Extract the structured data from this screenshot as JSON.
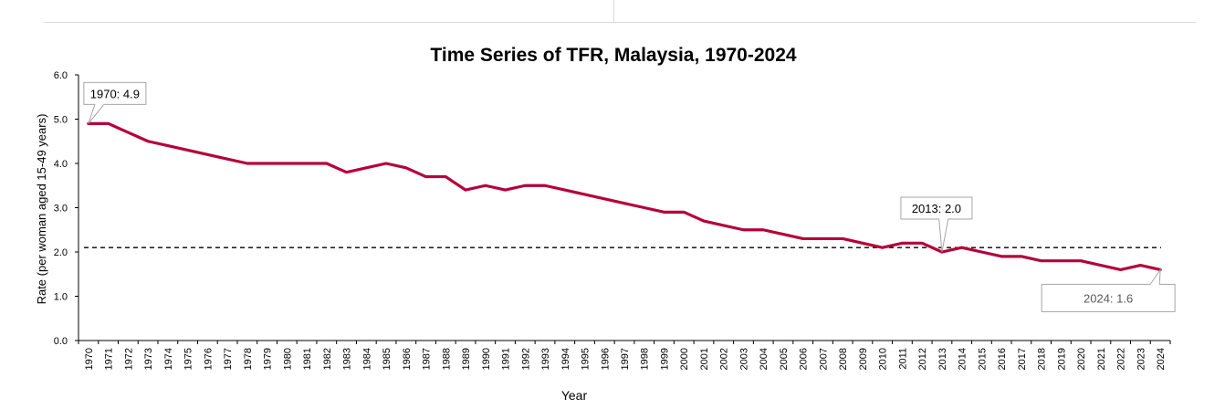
{
  "chart_data": {
    "type": "line",
    "title": "Time Series of TFR, Malaysia, 1970-2024",
    "xlabel": "Year",
    "ylabel": "Rate (per woman aged 15-49 years)",
    "ylim": [
      0,
      6
    ],
    "yticks": [
      "0.0",
      "1.0",
      "2.0",
      "3.0",
      "4.0",
      "5.0",
      "6.0"
    ],
    "x": [
      "1970",
      "1971",
      "1972",
      "1973",
      "1974",
      "1975",
      "1976",
      "1977",
      "1978",
      "1979",
      "1980",
      "1981",
      "1982",
      "1983",
      "1984",
      "1985",
      "1986",
      "1987",
      "1988",
      "1989",
      "1990",
      "1991",
      "1992",
      "1993",
      "1994",
      "1995",
      "1996",
      "1997",
      "1998",
      "1999",
      "2000",
      "2001",
      "2002",
      "2003",
      "2004",
      "2005",
      "2006",
      "2007",
      "2008",
      "2009",
      "2010",
      "2011",
      "2012",
      "2013",
      "2014",
      "2015",
      "2016",
      "2017",
      "2018",
      "2019",
      "2020",
      "2021",
      "2022",
      "2023",
      "2024"
    ],
    "series": [
      {
        "values": [
          4.9,
          4.9,
          4.7,
          4.5,
          4.4,
          4.3,
          4.2,
          4.1,
          4.0,
          4.0,
          4.0,
          4.0,
          4.0,
          3.8,
          3.9,
          4.0,
          3.9,
          3.7,
          3.7,
          3.4,
          3.5,
          3.4,
          3.5,
          3.5,
          3.4,
          3.3,
          3.2,
          3.1,
          3.0,
          2.9,
          2.9,
          2.7,
          2.6,
          2.5,
          2.5,
          2.4,
          2.3,
          2.3,
          2.3,
          2.2,
          2.1,
          2.2,
          2.2,
          2.0,
          2.1,
          2.0,
          1.9,
          1.9,
          1.8,
          1.8,
          1.8,
          1.7,
          1.6,
          1.7,
          1.6
        ],
        "color": "#b5003a"
      }
    ],
    "reference_line": {
      "value": 2.1,
      "style": "dashed",
      "color": "#000000"
    },
    "annotations": [
      {
        "x": "1970",
        "y": 4.9,
        "text": "1970: 4.9"
      },
      {
        "x": "2013",
        "y": 2.0,
        "text": "2013: 2.0"
      },
      {
        "x": "2024",
        "y": 1.6,
        "text": "2024: 1.6"
      }
    ],
    "grid": false,
    "legend": "none"
  }
}
